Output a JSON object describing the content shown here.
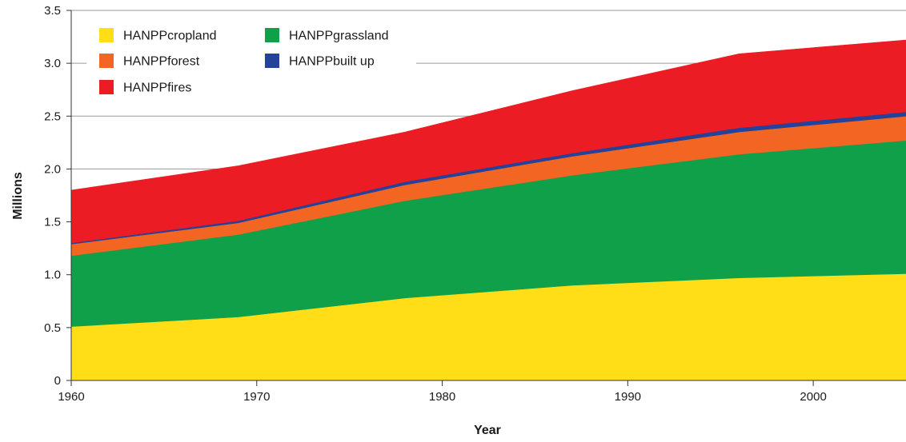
{
  "chart_data": {
    "type": "area",
    "stacked": true,
    "title": "",
    "xlabel": "Year",
    "ylabel": "Millions",
    "xlim": [
      1960,
      2005
    ],
    "ylim": [
      0,
      3.5
    ],
    "x_ticks": [
      1960,
      1970,
      1980,
      1990,
      2000
    ],
    "x_tick_labels": [
      "1960",
      "1970",
      "1980",
      "1990",
      "2000"
    ],
    "y_ticks": [
      0,
      0.5,
      1.0,
      1.5,
      2.0,
      2.5,
      3.0,
      3.5
    ],
    "y_tick_labels": [
      "0",
      "0.5",
      "1.0",
      "1.5",
      "2.0",
      "2.5",
      "3.0",
      "3.5"
    ],
    "grid": "horizontal",
    "legend_position": "top-left",
    "x": [
      1960,
      1969,
      1978,
      1987,
      1996,
      2005
    ],
    "series": [
      {
        "name": "HANPPcropland",
        "color": "#FFDD17",
        "values": [
          0.51,
          0.6,
          0.78,
          0.9,
          0.97,
          1.01
        ]
      },
      {
        "name": "HANPPgrassland",
        "color": "#10A04A",
        "values": [
          0.67,
          0.78,
          0.92,
          1.04,
          1.17,
          1.26
        ]
      },
      {
        "name": "HANPPforest",
        "color": "#F26522",
        "values": [
          0.11,
          0.11,
          0.15,
          0.18,
          0.21,
          0.23
        ]
      },
      {
        "name": "HANPPbuilt up",
        "color": "#24429A",
        "values": [
          0.01,
          0.02,
          0.03,
          0.03,
          0.04,
          0.04
        ]
      },
      {
        "name": "HANPPfires",
        "color": "#EC1C24",
        "values": [
          0.5,
          0.52,
          0.47,
          0.59,
          0.7,
          0.68
        ]
      }
    ],
    "legend_order": [
      "HANPPcropland",
      "HANPPgrassland",
      "HANPPforest",
      "HANPPbuilt up",
      "HANPPfires"
    ]
  }
}
